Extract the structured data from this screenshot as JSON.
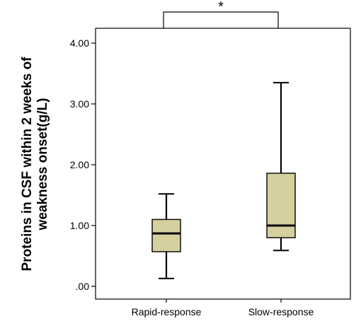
{
  "chart_data": {
    "type": "boxplot",
    "ylabel_lines": [
      "Proteins in CSF  within 2 weeks of",
      "weakness onset(g/L)"
    ],
    "ylim": [
      0,
      4.2
    ],
    "yticks": [
      0,
      1,
      2,
      3,
      4
    ],
    "ytick_labels": [
      ".00",
      "1.00",
      "2.00",
      "3.00",
      "4.00"
    ],
    "categories": [
      "Rapid-response",
      "Slow-response"
    ],
    "boxes": [
      {
        "category": "Rapid-response",
        "min": 0.13,
        "q1": 0.57,
        "median": 0.87,
        "q3": 1.1,
        "max": 1.52
      },
      {
        "category": "Slow-response",
        "min": 0.59,
        "q1": 0.8,
        "median": 1.0,
        "q3": 1.86,
        "max": 3.35
      }
    ],
    "significance": {
      "label": "*",
      "between": [
        "Rapid-response",
        "Slow-response"
      ]
    },
    "box_fill": "#d6cf9e",
    "grid": false
  }
}
